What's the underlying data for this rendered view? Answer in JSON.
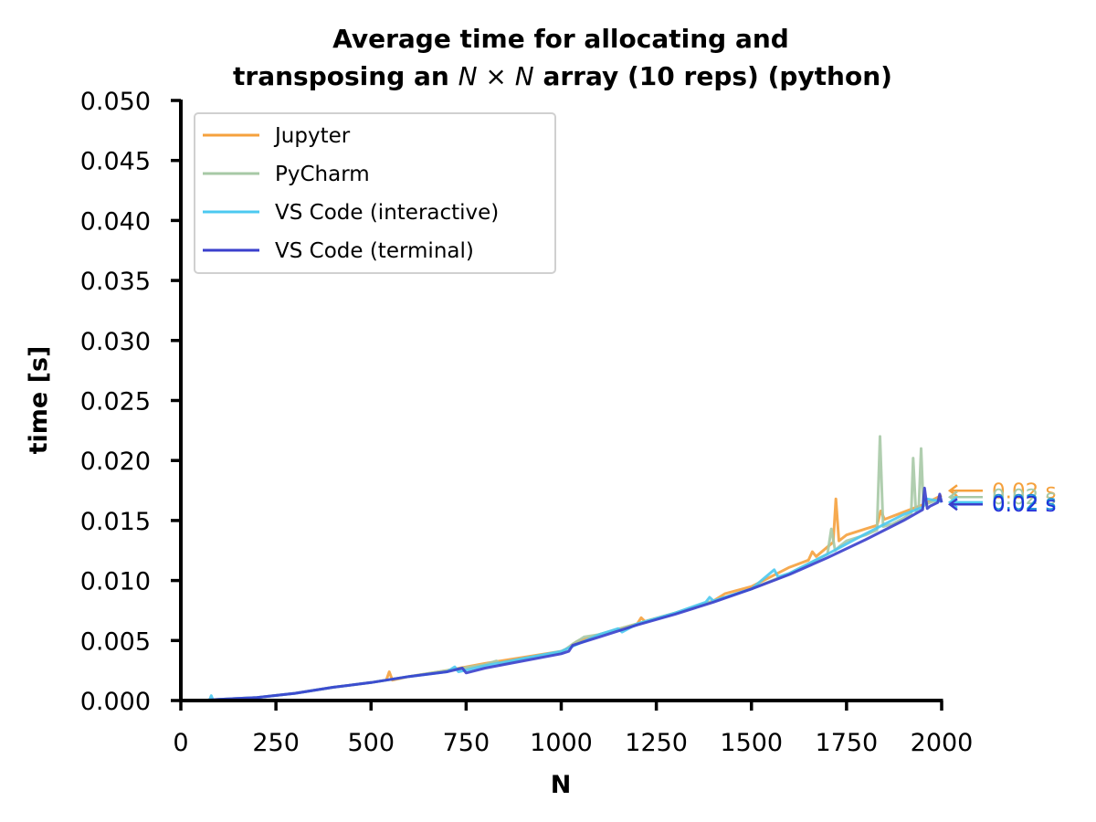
{
  "chart_data": {
    "type": "line",
    "title_line1": "Average time for allocating and",
    "title_line2_prefix": "transposing an ",
    "title_math": "N × N",
    "title_line2_suffix": " array (10 reps) (python)",
    "xlabel": "N",
    "ylabel": "time [s]",
    "xlim": [
      0,
      2000
    ],
    "ylim": [
      0,
      0.05
    ],
    "x_ticks": [
      0,
      250,
      500,
      750,
      1000,
      1250,
      1500,
      1750,
      2000
    ],
    "x_tick_labels": [
      "0",
      "250",
      "500",
      "750",
      "1000",
      "1250",
      "1500",
      "1750",
      "2000"
    ],
    "y_ticks": [
      0,
      0.005,
      0.01,
      0.015,
      0.02,
      0.025,
      0.03,
      0.035,
      0.04,
      0.045,
      0.05
    ],
    "y_tick_labels": [
      "0.000",
      "0.005",
      "0.010",
      "0.015",
      "0.020",
      "0.025",
      "0.030",
      "0.035",
      "0.040",
      "0.045",
      "0.050"
    ],
    "grid": false,
    "legend_position": "top-left",
    "series": [
      {
        "name": "Jupyter",
        "color": "#f5a13d",
        "end_label": "0.02 s",
        "x": [
          50,
          100,
          200,
          300,
          400,
          500,
          540,
          548,
          556,
          600,
          700,
          750,
          800,
          900,
          1000,
          1020,
          1040,
          1100,
          1200,
          1210,
          1220,
          1300,
          1400,
          1430,
          1500,
          1550,
          1600,
          1650,
          1660,
          1670,
          1700,
          1715,
          1722,
          1730,
          1750,
          1800,
          1830,
          1840,
          1850,
          1900,
          1950,
          2000
        ],
        "y": [
          0.0,
          0.0001,
          0.00025,
          0.0006,
          0.0011,
          0.0015,
          0.0017,
          0.0024,
          0.0017,
          0.002,
          0.0025,
          0.0028,
          0.0031,
          0.0036,
          0.0041,
          0.0044,
          0.0049,
          0.0055,
          0.0064,
          0.0069,
          0.0066,
          0.0073,
          0.0083,
          0.0089,
          0.0095,
          0.0103,
          0.0111,
          0.0117,
          0.0124,
          0.012,
          0.0128,
          0.0132,
          0.0168,
          0.0133,
          0.0138,
          0.0143,
          0.0146,
          0.0158,
          0.0151,
          0.0157,
          0.0163,
          0.0171
        ]
      },
      {
        "name": "PyCharm",
        "color": "#a7c9a6",
        "end_label": "0.02 s",
        "x": [
          50,
          100,
          200,
          300,
          400,
          500,
          600,
          700,
          800,
          830,
          840,
          900,
          1000,
          1030,
          1060,
          1100,
          1200,
          1300,
          1400,
          1500,
          1600,
          1700,
          1710,
          1720,
          1730,
          1750,
          1800,
          1830,
          1838,
          1846,
          1870,
          1900,
          1920,
          1925,
          1932,
          1940,
          1946,
          1952,
          1960,
          2000
        ],
        "y": [
          0.0,
          0.0001,
          0.00025,
          0.0006,
          0.0011,
          0.0015,
          0.002,
          0.0025,
          0.003,
          0.0033,
          0.003,
          0.0035,
          0.004,
          0.0047,
          0.0053,
          0.0055,
          0.0064,
          0.0073,
          0.0083,
          0.0093,
          0.0106,
          0.0122,
          0.0143,
          0.0125,
          0.0128,
          0.0133,
          0.0138,
          0.0142,
          0.022,
          0.0145,
          0.0147,
          0.0152,
          0.0156,
          0.0202,
          0.0158,
          0.0161,
          0.021,
          0.0162,
          0.0164,
          0.0168
        ]
      },
      {
        "name": "VS Code (interactive)",
        "color": "#4cc9f0",
        "end_label": "0.02 s",
        "x": [
          50,
          75,
          80,
          85,
          100,
          200,
          300,
          400,
          500,
          600,
          700,
          720,
          730,
          800,
          900,
          1000,
          1100,
          1150,
          1160,
          1200,
          1300,
          1380,
          1390,
          1400,
          1500,
          1560,
          1570,
          1600,
          1700,
          1800,
          1900,
          1950,
          1960,
          2000
        ],
        "y": [
          0.0,
          0.0,
          0.0004,
          0.0,
          0.0001,
          0.00025,
          0.0006,
          0.0011,
          0.0015,
          0.002,
          0.0024,
          0.0028,
          0.0024,
          0.0029,
          0.0035,
          0.0041,
          0.0055,
          0.006,
          0.0057,
          0.0064,
          0.0073,
          0.0082,
          0.0086,
          0.0083,
          0.0093,
          0.0109,
          0.0103,
          0.0106,
          0.0122,
          0.0139,
          0.0155,
          0.0161,
          0.0168,
          0.0166
        ]
      },
      {
        "name": "VS Code (terminal)",
        "color": "#3a3fcc",
        "end_label": "0.02 s",
        "x": [
          50,
          100,
          200,
          300,
          400,
          500,
          600,
          700,
          740,
          750,
          800,
          900,
          1000,
          1020,
          1030,
          1050,
          1100,
          1200,
          1300,
          1400,
          1500,
          1600,
          1700,
          1800,
          1900,
          1950,
          1955,
          1962,
          1970,
          1990,
          1995,
          2000
        ],
        "y": [
          0.0,
          0.0001,
          0.00025,
          0.0006,
          0.0011,
          0.0015,
          0.002,
          0.0024,
          0.0027,
          0.0023,
          0.0027,
          0.0033,
          0.0039,
          0.0041,
          0.0046,
          0.0048,
          0.0053,
          0.0063,
          0.0072,
          0.0082,
          0.0093,
          0.0105,
          0.0119,
          0.0134,
          0.015,
          0.0159,
          0.0177,
          0.016,
          0.0162,
          0.0165,
          0.0172,
          0.0165
        ]
      }
    ]
  }
}
